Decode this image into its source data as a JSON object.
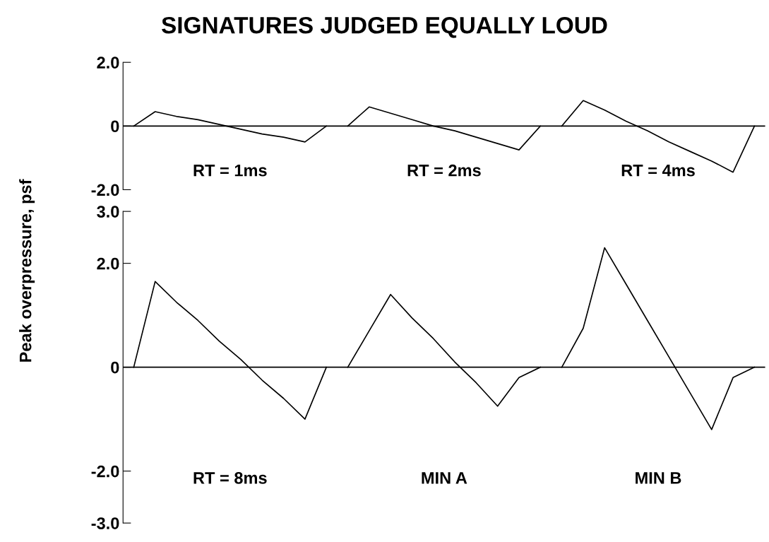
{
  "chart_data": [
    {
      "type": "line",
      "title": "SIGNATURES JUDGED EQUALLY LOUD",
      "ylabel": "Peak overpressure, psf",
      "categories": [
        null,
        null,
        null,
        null,
        null,
        null,
        null,
        null,
        null,
        null,
        null,
        null,
        null,
        null,
        null,
        null,
        null,
        null,
        null,
        null,
        null,
        null,
        null,
        null,
        null,
        null,
        null,
        null,
        null,
        null
      ],
      "series": [
        {
          "color": "#000000",
          "values": [
            0,
            0.45,
            0.3,
            0.2,
            0.05,
            -0.1,
            -0.25,
            -0.35,
            -0.5,
            0,
            null,
            null,
            null,
            null,
            null,
            null,
            null,
            null,
            null,
            null,
            null,
            null,
            null,
            null,
            null,
            null,
            null,
            null,
            null,
            null
          ]
        },
        {
          "color": "#000000",
          "values": [
            null,
            null,
            null,
            null,
            null,
            null,
            null,
            null,
            null,
            null,
            0,
            0.6,
            0.4,
            0.2,
            0.0,
            -0.15,
            -0.35,
            -0.55,
            -0.75,
            0,
            null,
            null,
            null,
            null,
            null,
            null,
            null,
            null,
            null,
            null
          ]
        },
        {
          "color": "#000000",
          "values": [
            null,
            null,
            null,
            null,
            null,
            null,
            null,
            null,
            null,
            null,
            null,
            null,
            null,
            null,
            null,
            null,
            null,
            null,
            null,
            null,
            0,
            0.8,
            0.5,
            0.15,
            -0.15,
            -0.5,
            -0.8,
            -1.1,
            -1.45,
            0
          ]
        }
      ],
      "annotations": [
        "RT = 1ms",
        "RT = 2ms",
        "RT = 4ms"
      ],
      "ylim": [
        -2.0,
        2.0
      ],
      "yticks": [
        {
          "value": 2.0,
          "label": "2.0"
        },
        0,
        {
          "value": -2.0,
          "label": "-2.0"
        }
      ],
      "ref_lines": [
        {
          "axis": "y",
          "value": 0,
          "color": "#000000"
        }
      ],
      "tick_labels": "y",
      "grid": false,
      "legend": false,
      "marker": "none",
      "line_style": "solid"
    },
    {
      "type": "line",
      "categories": [
        null,
        null,
        null,
        null,
        null,
        null,
        null,
        null,
        null,
        null,
        null,
        null,
        null,
        null,
        null,
        null,
        null,
        null,
        null,
        null,
        null,
        null,
        null,
        null,
        null,
        null,
        null,
        null,
        null,
        null
      ],
      "series": [
        {
          "color": "#000000",
          "values": [
            0,
            1.65,
            1.25,
            0.9,
            0.5,
            0.15,
            -0.25,
            -0.6,
            -1.0,
            0,
            null,
            null,
            null,
            null,
            null,
            null,
            null,
            null,
            null,
            null,
            null,
            null,
            null,
            null,
            null,
            null,
            null,
            null,
            null,
            null
          ]
        },
        {
          "color": "#000000",
          "values": [
            null,
            null,
            null,
            null,
            null,
            null,
            null,
            null,
            null,
            null,
            0,
            0.7,
            1.4,
            0.95,
            0.55,
            0.1,
            -0.3,
            -0.75,
            -0.2,
            0,
            null,
            null,
            null,
            null,
            null,
            null,
            null,
            null,
            null,
            null
          ]
        },
        {
          "color": "#000000",
          "values": [
            null,
            null,
            null,
            null,
            null,
            null,
            null,
            null,
            null,
            null,
            null,
            null,
            null,
            null,
            null,
            null,
            null,
            null,
            null,
            null,
            0,
            0.75,
            2.3,
            1.6,
            0.9,
            0.2,
            -0.5,
            -1.2,
            -0.2,
            0
          ]
        }
      ],
      "annotations": [
        "RT = 8ms",
        "MIN A",
        "MIN B"
      ],
      "ylim": [
        -3.0,
        3.0
      ],
      "yticks": [
        {
          "value": 3.0,
          "label": "3.0"
        },
        {
          "value": 2.0,
          "label": "2.0"
        },
        0,
        {
          "value": -2.0,
          "label": "-2.0"
        },
        {
          "value": -3.0,
          "label": "-3.0"
        }
      ],
      "ref_lines": [
        {
          "axis": "y",
          "value": 0,
          "color": "#000000"
        }
      ],
      "tick_labels": "y",
      "grid": false,
      "legend": false,
      "marker": "none",
      "line_style": "solid"
    }
  ]
}
